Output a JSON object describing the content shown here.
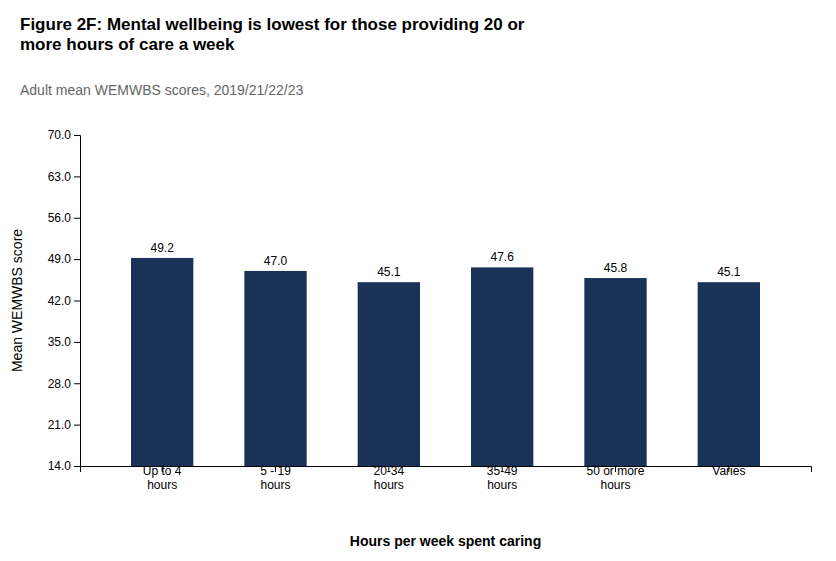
{
  "chart_data": {
    "type": "bar",
    "title": "Figure 2F: Mental wellbeing is lowest for those providing 20 or\nmore hours of care a week",
    "subtitle": "Adult mean WEMWBS scores, 2019/21/22/23",
    "categories": [
      "Up to 4\nhours",
      "5 - 19\nhours",
      "20-34\nhours",
      "35-49\nhours",
      "50 or more\nhours",
      "Varies"
    ],
    "values": [
      49.2,
      47.0,
      45.1,
      47.6,
      45.8,
      45.1
    ],
    "value_labels": [
      "49.2",
      "47.0",
      "45.1",
      "47.6",
      "45.8",
      "45.1"
    ],
    "color": "#1a3257",
    "xlabel": "Hours per week spent caring",
    "ylabel": "Mean WEMWBS score",
    "ylim": [
      14.0,
      70.0
    ],
    "yticks": [
      {
        "value": 14,
        "label": "14.0"
      },
      {
        "value": 21,
        "label": "21.0"
      },
      {
        "value": 28,
        "label": "28.0"
      },
      {
        "value": 35,
        "label": "35.0"
      },
      {
        "value": 42,
        "label": "42.0"
      },
      {
        "value": 49,
        "label": "49.0"
      },
      {
        "value": 56,
        "label": "56.0"
      },
      {
        "value": 63,
        "label": "63.0"
      },
      {
        "value": 70,
        "label": "70.0"
      }
    ],
    "grid": false,
    "data_labels": true
  }
}
